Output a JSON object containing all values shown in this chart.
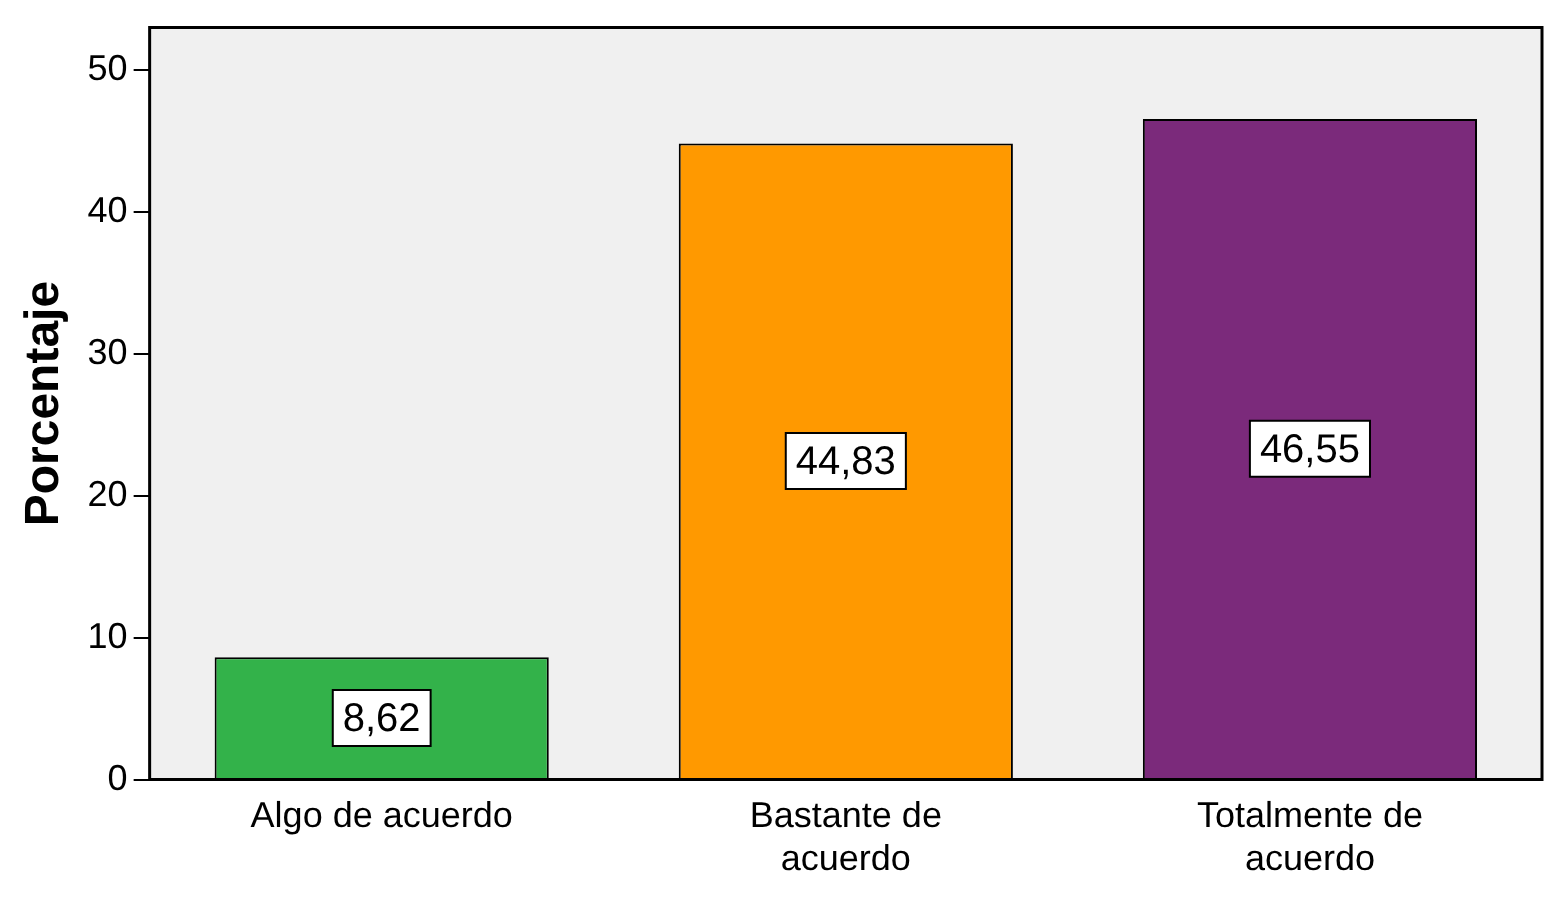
{
  "chart_data": {
    "type": "bar",
    "ylabel": "Porcentaje",
    "categories": [
      "Algo de acuerdo",
      "Bastante de acuerdo",
      "Totalmente de acuerdo"
    ],
    "values": [
      8.62,
      44.83,
      46.55
    ],
    "colors": [
      "#33b24a",
      "#ff9900",
      "#7b2a7b"
    ],
    "value_labels": [
      "8,62",
      "44,83",
      "46,55"
    ],
    "ylim": [
      0,
      53
    ],
    "yticks": [
      0,
      10,
      20,
      30,
      40,
      50
    ],
    "legend": false
  }
}
